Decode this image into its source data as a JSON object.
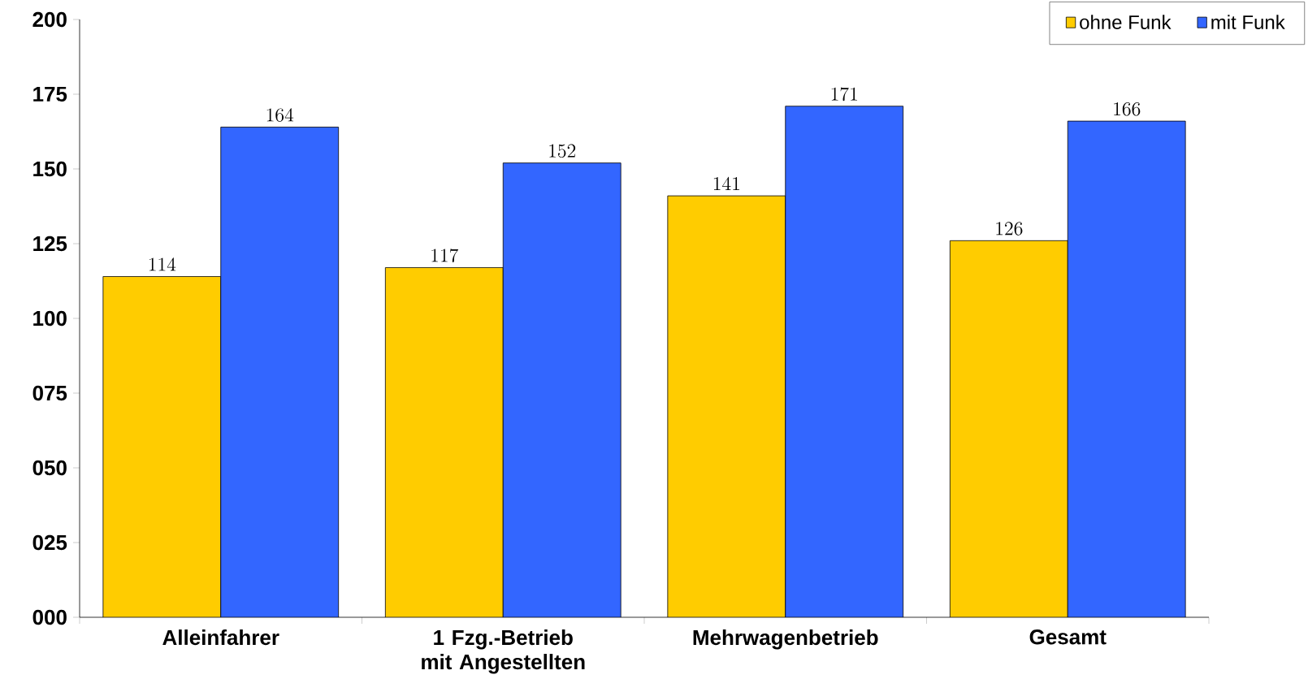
{
  "chart_data": {
    "type": "bar",
    "categories": [
      "Alleinfahrer",
      "1 Fzg.-Betrieb mit Angestellten",
      "Mehrwagenbetrieb",
      "Gesamt"
    ],
    "series": [
      {
        "name": "ohne Funk",
        "color": "#ffcc00",
        "values": [
          114,
          117,
          141,
          126
        ]
      },
      {
        "name": "mit Funk",
        "color": "#3366ff",
        "values": [
          164,
          152,
          171,
          166
        ]
      }
    ],
    "ylim": [
      0,
      200
    ],
    "yticks": [
      {
        "value": 0,
        "label": "000"
      },
      {
        "value": 25,
        "label": "025"
      },
      {
        "value": 50,
        "label": "050"
      },
      {
        "value": 75,
        "label": "075"
      },
      100,
      125,
      150,
      175,
      200
    ],
    "data_labels": true,
    "legend": "top right",
    "grid": false
  }
}
